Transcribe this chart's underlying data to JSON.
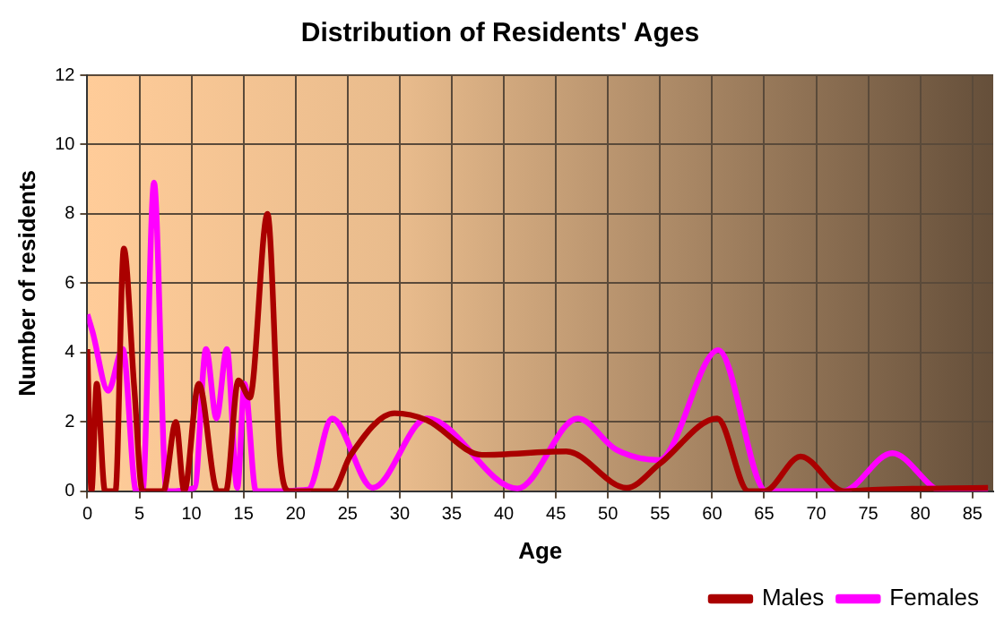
{
  "chart_data": {
    "type": "line",
    "title": "Distribution of Residents' Ages",
    "xlabel": "Age",
    "ylabel": "Number of residents",
    "xlim": [
      0,
      87
    ],
    "xticks": [
      0,
      5,
      10,
      15,
      20,
      25,
      30,
      35,
      40,
      45,
      50,
      55,
      60,
      65,
      70,
      75,
      80,
      85
    ],
    "ylim": [
      0,
      12
    ],
    "yticks": [
      0,
      2,
      4,
      6,
      8,
      10,
      12
    ],
    "grid": true,
    "legend": "bottom right",
    "marker": "none",
    "line_style": "solid",
    "series": [
      {
        "name": "Males",
        "color": "#aa0000",
        "x": [
          0,
          0.4,
          0.9,
          1.7,
          2.7,
          3.5,
          4.5,
          5.3,
          7.3,
          8.5,
          9.3,
          10.7,
          12.5,
          13.3,
          14.5,
          15.6,
          17.3,
          18.5,
          19.4,
          23.5,
          25.3,
          29.5,
          32.6,
          37.9,
          46,
          51.8,
          55,
          60.5,
          63.5,
          65,
          68.5,
          72.7,
          76,
          86.5
        ],
        "values": [
          4.1,
          0,
          3.1,
          0,
          0,
          7,
          3,
          0,
          0,
          2,
          0,
          3.1,
          0,
          0,
          3.2,
          2.7,
          8,
          1,
          0,
          0,
          1.05,
          2.25,
          2.05,
          1.05,
          1.15,
          0.1,
          0.8,
          2.1,
          0,
          0,
          1,
          0,
          0.05,
          0.1
        ]
      },
      {
        "name": "Females",
        "color": "#ff00ff",
        "x": [
          0,
          0.5,
          2,
          3.4,
          4.7,
          5.3,
          6.4,
          7.6,
          10.3,
          11.4,
          12.4,
          13.4,
          14.4,
          15.1,
          16.2,
          21.2,
          23.5,
          27.4,
          32.6,
          41.3,
          47.1,
          50.8,
          54.9,
          60.6,
          65.2,
          72.5,
          77.3,
          82.2,
          86.5
        ],
        "values": [
          5.1,
          4.6,
          2.9,
          4.1,
          0,
          0,
          8.9,
          0,
          0.1,
          4.1,
          2.1,
          4.1,
          0.1,
          3.1,
          0,
          0.05,
          2.1,
          0.1,
          2.1,
          0.08,
          2.1,
          1.2,
          0.9,
          4.07,
          0,
          0,
          1.1,
          0,
          0
        ]
      }
    ]
  }
}
